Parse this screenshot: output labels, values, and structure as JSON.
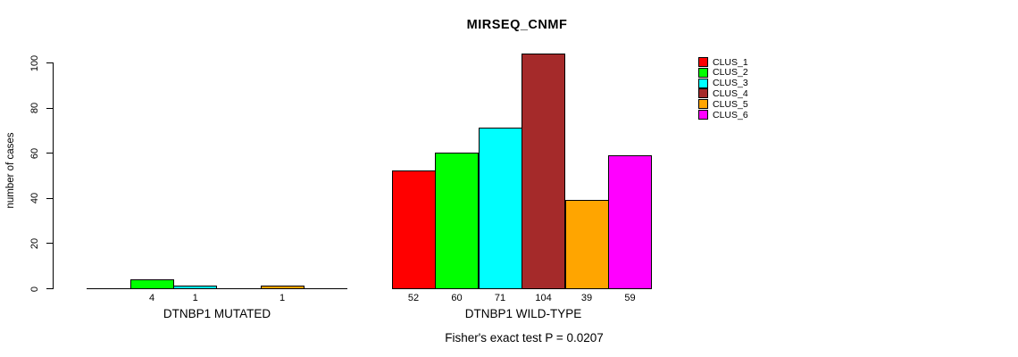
{
  "chart_data": {
    "type": "bar",
    "title": "MIRSEQ_CNMF",
    "ylabel": "number of cases",
    "xlabel": "",
    "subtitle": "Fisher's exact test P = 0.0207",
    "yticks": [
      0,
      20,
      40,
      60,
      80,
      100
    ],
    "ylim": [
      0,
      104
    ],
    "grid": false,
    "legend_position": "right",
    "legend": [
      {
        "label": "CLUS_1",
        "color": "#FF0000"
      },
      {
        "label": "CLUS_2",
        "color": "#00FF00"
      },
      {
        "label": "CLUS_3",
        "color": "#00FFFF"
      },
      {
        "label": "CLUS_4",
        "color": "#A52A2A"
      },
      {
        "label": "CLUS_5",
        "color": "#FFA500"
      },
      {
        "label": "CLUS_6",
        "color": "#FF00FF"
      }
    ],
    "groups": [
      {
        "label": "DTNBP1 MUTATED",
        "values": [
          0,
          4,
          1,
          0,
          1,
          0
        ],
        "bar_labels": [
          "",
          "4",
          "1",
          "",
          "1",
          ""
        ]
      },
      {
        "label": "DTNBP1 WILD-TYPE",
        "values": [
          52,
          60,
          71,
          104,
          39,
          59
        ],
        "bar_labels": [
          "52",
          "60",
          "71",
          "104",
          "39",
          "59"
        ]
      }
    ]
  }
}
